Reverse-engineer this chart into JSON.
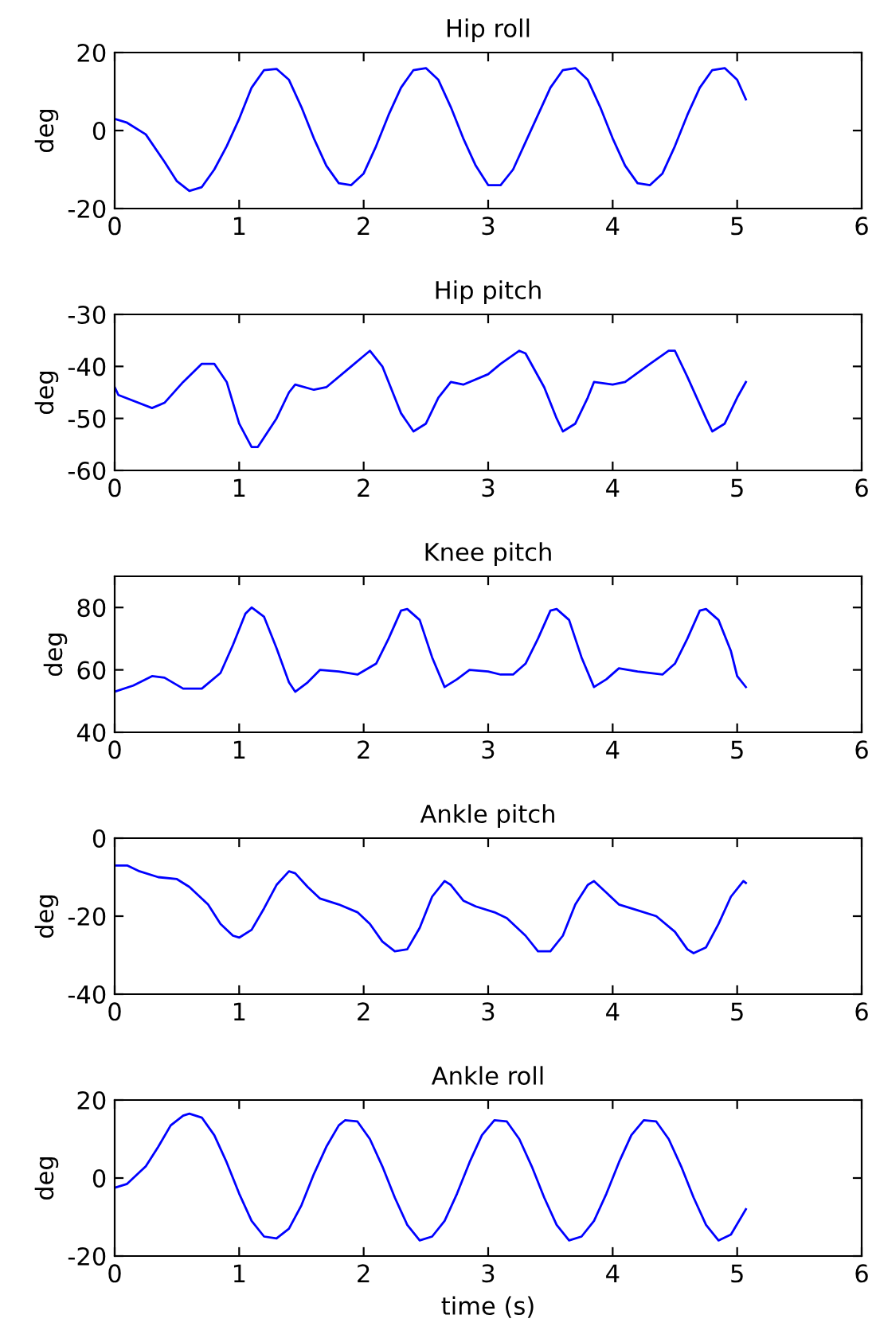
{
  "chart_data": [
    {
      "type": "line",
      "title": "Hip roll",
      "ylabel": "deg",
      "xlim": [
        0,
        6
      ],
      "xticks": [
        0,
        1,
        2,
        3,
        4,
        5,
        6
      ],
      "ylim": [
        -20,
        20
      ],
      "yticks": [
        -20,
        0,
        20
      ],
      "grid": false,
      "series": [
        {
          "color": "#0000ff",
          "x": [
            0,
            0.1,
            0.25,
            0.4,
            0.5,
            0.6,
            0.7,
            0.8,
            0.9,
            1.0,
            1.1,
            1.2,
            1.3,
            1.4,
            1.5,
            1.6,
            1.7,
            1.8,
            1.9,
            2.0,
            2.1,
            2.2,
            2.3,
            2.4,
            2.5,
            2.6,
            2.7,
            2.8,
            2.9,
            3.0,
            3.1,
            3.2,
            3.3,
            3.4,
            3.5,
            3.6,
            3.7,
            3.8,
            3.9,
            4.0,
            4.1,
            4.2,
            4.3,
            4.4,
            4.5,
            4.6,
            4.7,
            4.8,
            4.9,
            5.0,
            5.07
          ],
          "values": [
            3,
            2,
            -1,
            -8,
            -13,
            -15.5,
            -14.5,
            -10,
            -4,
            3,
            11,
            15.5,
            15.8,
            13,
            6,
            -2,
            -9,
            -13.5,
            -14,
            -11,
            -4,
            4,
            11,
            15.5,
            16,
            13,
            6,
            -2,
            -9,
            -14,
            -14,
            -10,
            -3,
            4,
            11,
            15.5,
            16,
            13,
            6,
            -2,
            -9,
            -13.5,
            -14,
            -11,
            -4,
            4,
            11,
            15.5,
            16,
            13,
            8
          ]
        }
      ]
    },
    {
      "type": "line",
      "title": "Hip pitch",
      "ylabel": "deg",
      "xlim": [
        0,
        6
      ],
      "xticks": [
        0,
        1,
        2,
        3,
        4,
        5,
        6
      ],
      "ylim": [
        -60,
        -30
      ],
      "yticks": [
        -60,
        -50,
        -40,
        -30
      ],
      "grid": false,
      "series": [
        {
          "color": "#0000ff",
          "x": [
            0,
            0.03,
            0.3,
            0.4,
            0.55,
            0.7,
            0.8,
            0.9,
            1.0,
            1.1,
            1.15,
            1.3,
            1.4,
            1.45,
            1.6,
            1.7,
            1.9,
            2.0,
            2.05,
            2.15,
            2.3,
            2.4,
            2.5,
            2.6,
            2.7,
            2.8,
            3.0,
            3.1,
            3.25,
            3.3,
            3.45,
            3.55,
            3.6,
            3.7,
            3.8,
            3.85,
            4.0,
            4.1,
            4.3,
            4.45,
            4.5,
            4.6,
            4.75,
            4.8,
            4.9,
            5.0,
            5.07
          ],
          "values": [
            -44,
            -45.5,
            -48,
            -47,
            -43,
            -39.5,
            -39.5,
            -43,
            -51,
            -55.5,
            -55.5,
            -50,
            -45,
            -43.5,
            -44.5,
            -44,
            -40,
            -38,
            -37,
            -40,
            -49,
            -52.5,
            -51,
            -46,
            -43,
            -43.5,
            -41.5,
            -39.5,
            -37,
            -37.5,
            -44,
            -50,
            -52.5,
            -51,
            -46,
            -43,
            -43.5,
            -43,
            -39.5,
            -37,
            -37,
            -42,
            -50,
            -52.5,
            -51,
            -46,
            -43
          ]
        }
      ]
    },
    {
      "type": "line",
      "title": "Knee pitch",
      "ylabel": "deg",
      "xlim": [
        0,
        6
      ],
      "xticks": [
        0,
        1,
        2,
        3,
        4,
        5,
        6
      ],
      "ylim": [
        40,
        90
      ],
      "yticks": [
        40,
        60,
        80
      ],
      "grid": false,
      "series": [
        {
          "color": "#0000ff",
          "x": [
            0,
            0.15,
            0.3,
            0.4,
            0.55,
            0.7,
            0.85,
            0.95,
            1.05,
            1.1,
            1.2,
            1.3,
            1.4,
            1.45,
            1.55,
            1.65,
            1.8,
            1.95,
            2.1,
            2.2,
            2.3,
            2.35,
            2.45,
            2.55,
            2.65,
            2.75,
            2.85,
            3.0,
            3.1,
            3.2,
            3.3,
            3.4,
            3.5,
            3.55,
            3.65,
            3.75,
            3.85,
            3.95,
            4.05,
            4.2,
            4.4,
            4.5,
            4.6,
            4.7,
            4.75,
            4.85,
            4.95,
            5.0,
            5.07
          ],
          "values": [
            53,
            55,
            58,
            57.5,
            54,
            54,
            59,
            68,
            78,
            80,
            77,
            67,
            56,
            53,
            56,
            60,
            59.5,
            58.5,
            62,
            70,
            79,
            79.5,
            76,
            64,
            54.5,
            57,
            60,
            59.5,
            58.5,
            58.5,
            62,
            70,
            79,
            79.5,
            76,
            64,
            54.5,
            57,
            60.5,
            59.5,
            58.5,
            62,
            70,
            79,
            79.5,
            76,
            66,
            58,
            54.5
          ]
        }
      ]
    },
    {
      "type": "line",
      "title": "Ankle pitch",
      "ylabel": "deg",
      "xlim": [
        0,
        6
      ],
      "xticks": [
        0,
        1,
        2,
        3,
        4,
        5,
        6
      ],
      "ylim": [
        -40,
        0
      ],
      "yticks": [
        -40,
        -20,
        0
      ],
      "grid": false,
      "series": [
        {
          "color": "#0000ff",
          "x": [
            0,
            0.1,
            0.2,
            0.35,
            0.5,
            0.6,
            0.75,
            0.85,
            0.95,
            1.0,
            1.1,
            1.2,
            1.3,
            1.4,
            1.45,
            1.55,
            1.65,
            1.8,
            1.95,
            2.05,
            2.15,
            2.25,
            2.35,
            2.45,
            2.55,
            2.65,
            2.7,
            2.8,
            2.9,
            3.05,
            3.15,
            3.3,
            3.4,
            3.5,
            3.6,
            3.7,
            3.8,
            3.85,
            3.95,
            4.05,
            4.2,
            4.35,
            4.5,
            4.6,
            4.65,
            4.75,
            4.85,
            4.95,
            5.05,
            5.07
          ],
          "values": [
            -7,
            -7,
            -8.5,
            -10,
            -10.5,
            -12.5,
            -17,
            -22,
            -25,
            -25.5,
            -23.5,
            -18,
            -12,
            -8.5,
            -9,
            -12.5,
            -15.5,
            -17,
            -19,
            -22,
            -26.5,
            -29,
            -28.5,
            -23,
            -15,
            -11,
            -12,
            -16,
            -17.5,
            -19,
            -20.5,
            -25,
            -29,
            -29,
            -25,
            -17,
            -12,
            -11,
            -14,
            -17,
            -18.5,
            -20,
            -24,
            -28.5,
            -29.5,
            -28,
            -22,
            -15,
            -11,
            -11.5
          ]
        }
      ]
    },
    {
      "type": "line",
      "title": "Ankle roll",
      "ylabel": "deg",
      "xlabel": "time (s)",
      "xlim": [
        0,
        6
      ],
      "xticks": [
        0,
        1,
        2,
        3,
        4,
        5,
        6
      ],
      "ylim": [
        -20,
        20
      ],
      "yticks": [
        -20,
        0,
        20
      ],
      "grid": false,
      "series": [
        {
          "color": "#0000ff",
          "x": [
            0,
            0.1,
            0.25,
            0.35,
            0.45,
            0.55,
            0.6,
            0.7,
            0.8,
            0.9,
            1.0,
            1.1,
            1.2,
            1.3,
            1.4,
            1.5,
            1.6,
            1.7,
            1.8,
            1.85,
            1.95,
            2.05,
            2.15,
            2.25,
            2.35,
            2.45,
            2.55,
            2.65,
            2.75,
            2.85,
            2.95,
            3.05,
            3.15,
            3.25,
            3.35,
            3.45,
            3.55,
            3.65,
            3.75,
            3.85,
            3.95,
            4.05,
            4.15,
            4.25,
            4.35,
            4.45,
            4.55,
            4.65,
            4.75,
            4.85,
            4.95,
            5.07
          ],
          "values": [
            -2.5,
            -1.5,
            3,
            8,
            13.5,
            16,
            16.5,
            15.5,
            11,
            4,
            -4,
            -11,
            -15,
            -15.5,
            -13,
            -7,
            1,
            8,
            13.5,
            14.8,
            14.5,
            10,
            3,
            -5,
            -12,
            -16,
            -15,
            -11,
            -4,
            4,
            11,
            14.8,
            14.5,
            10,
            3,
            -5,
            -12,
            -16,
            -15,
            -11,
            -4,
            4,
            11,
            14.8,
            14.5,
            10,
            3,
            -5,
            -12,
            -16,
            -14.5,
            -8
          ]
        }
      ]
    }
  ]
}
